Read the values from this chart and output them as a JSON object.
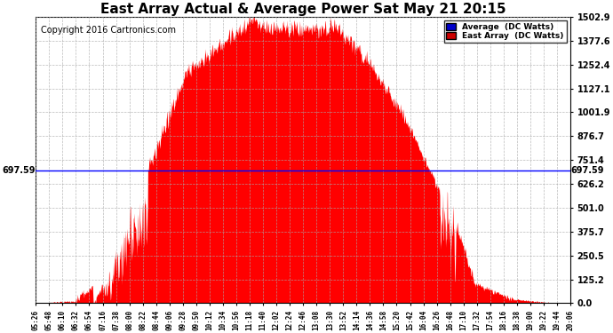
{
  "title": "East Array Actual & Average Power Sat May 21 20:15",
  "copyright": "Copyright 2016 Cartronics.com",
  "y_max": 1502.9,
  "y_min": 0.0,
  "y_ticks": [
    0.0,
    125.2,
    250.5,
    375.7,
    501.0,
    626.2,
    751.4,
    876.7,
    1001.9,
    1127.1,
    1252.4,
    1377.6,
    1502.9
  ],
  "hline_value": 697.59,
  "hline_label": "697.59",
  "hline_color": "#0000ff",
  "legend_average_color": "#0000cc",
  "legend_average_label": "Average  (DC Watts)",
  "legend_east_color": "#cc0000",
  "legend_east_label": "East Array  (DC Watts)",
  "fill_color": "#ff0000",
  "background_color": "#ffffff",
  "grid_color": "#aaaaaa",
  "title_fontsize": 11,
  "copyright_fontsize": 7,
  "x_labels": [
    "05:26",
    "05:48",
    "06:10",
    "06:32",
    "06:54",
    "07:16",
    "07:38",
    "08:00",
    "08:22",
    "08:44",
    "09:06",
    "09:28",
    "09:50",
    "10:12",
    "10:34",
    "10:56",
    "11:18",
    "11:40",
    "12:02",
    "12:24",
    "12:46",
    "13:08",
    "13:30",
    "13:52",
    "14:14",
    "14:36",
    "14:58",
    "15:20",
    "15:42",
    "16:04",
    "16:26",
    "16:48",
    "17:10",
    "17:32",
    "17:54",
    "18:16",
    "18:38",
    "19:00",
    "19:22",
    "19:44",
    "20:06"
  ]
}
